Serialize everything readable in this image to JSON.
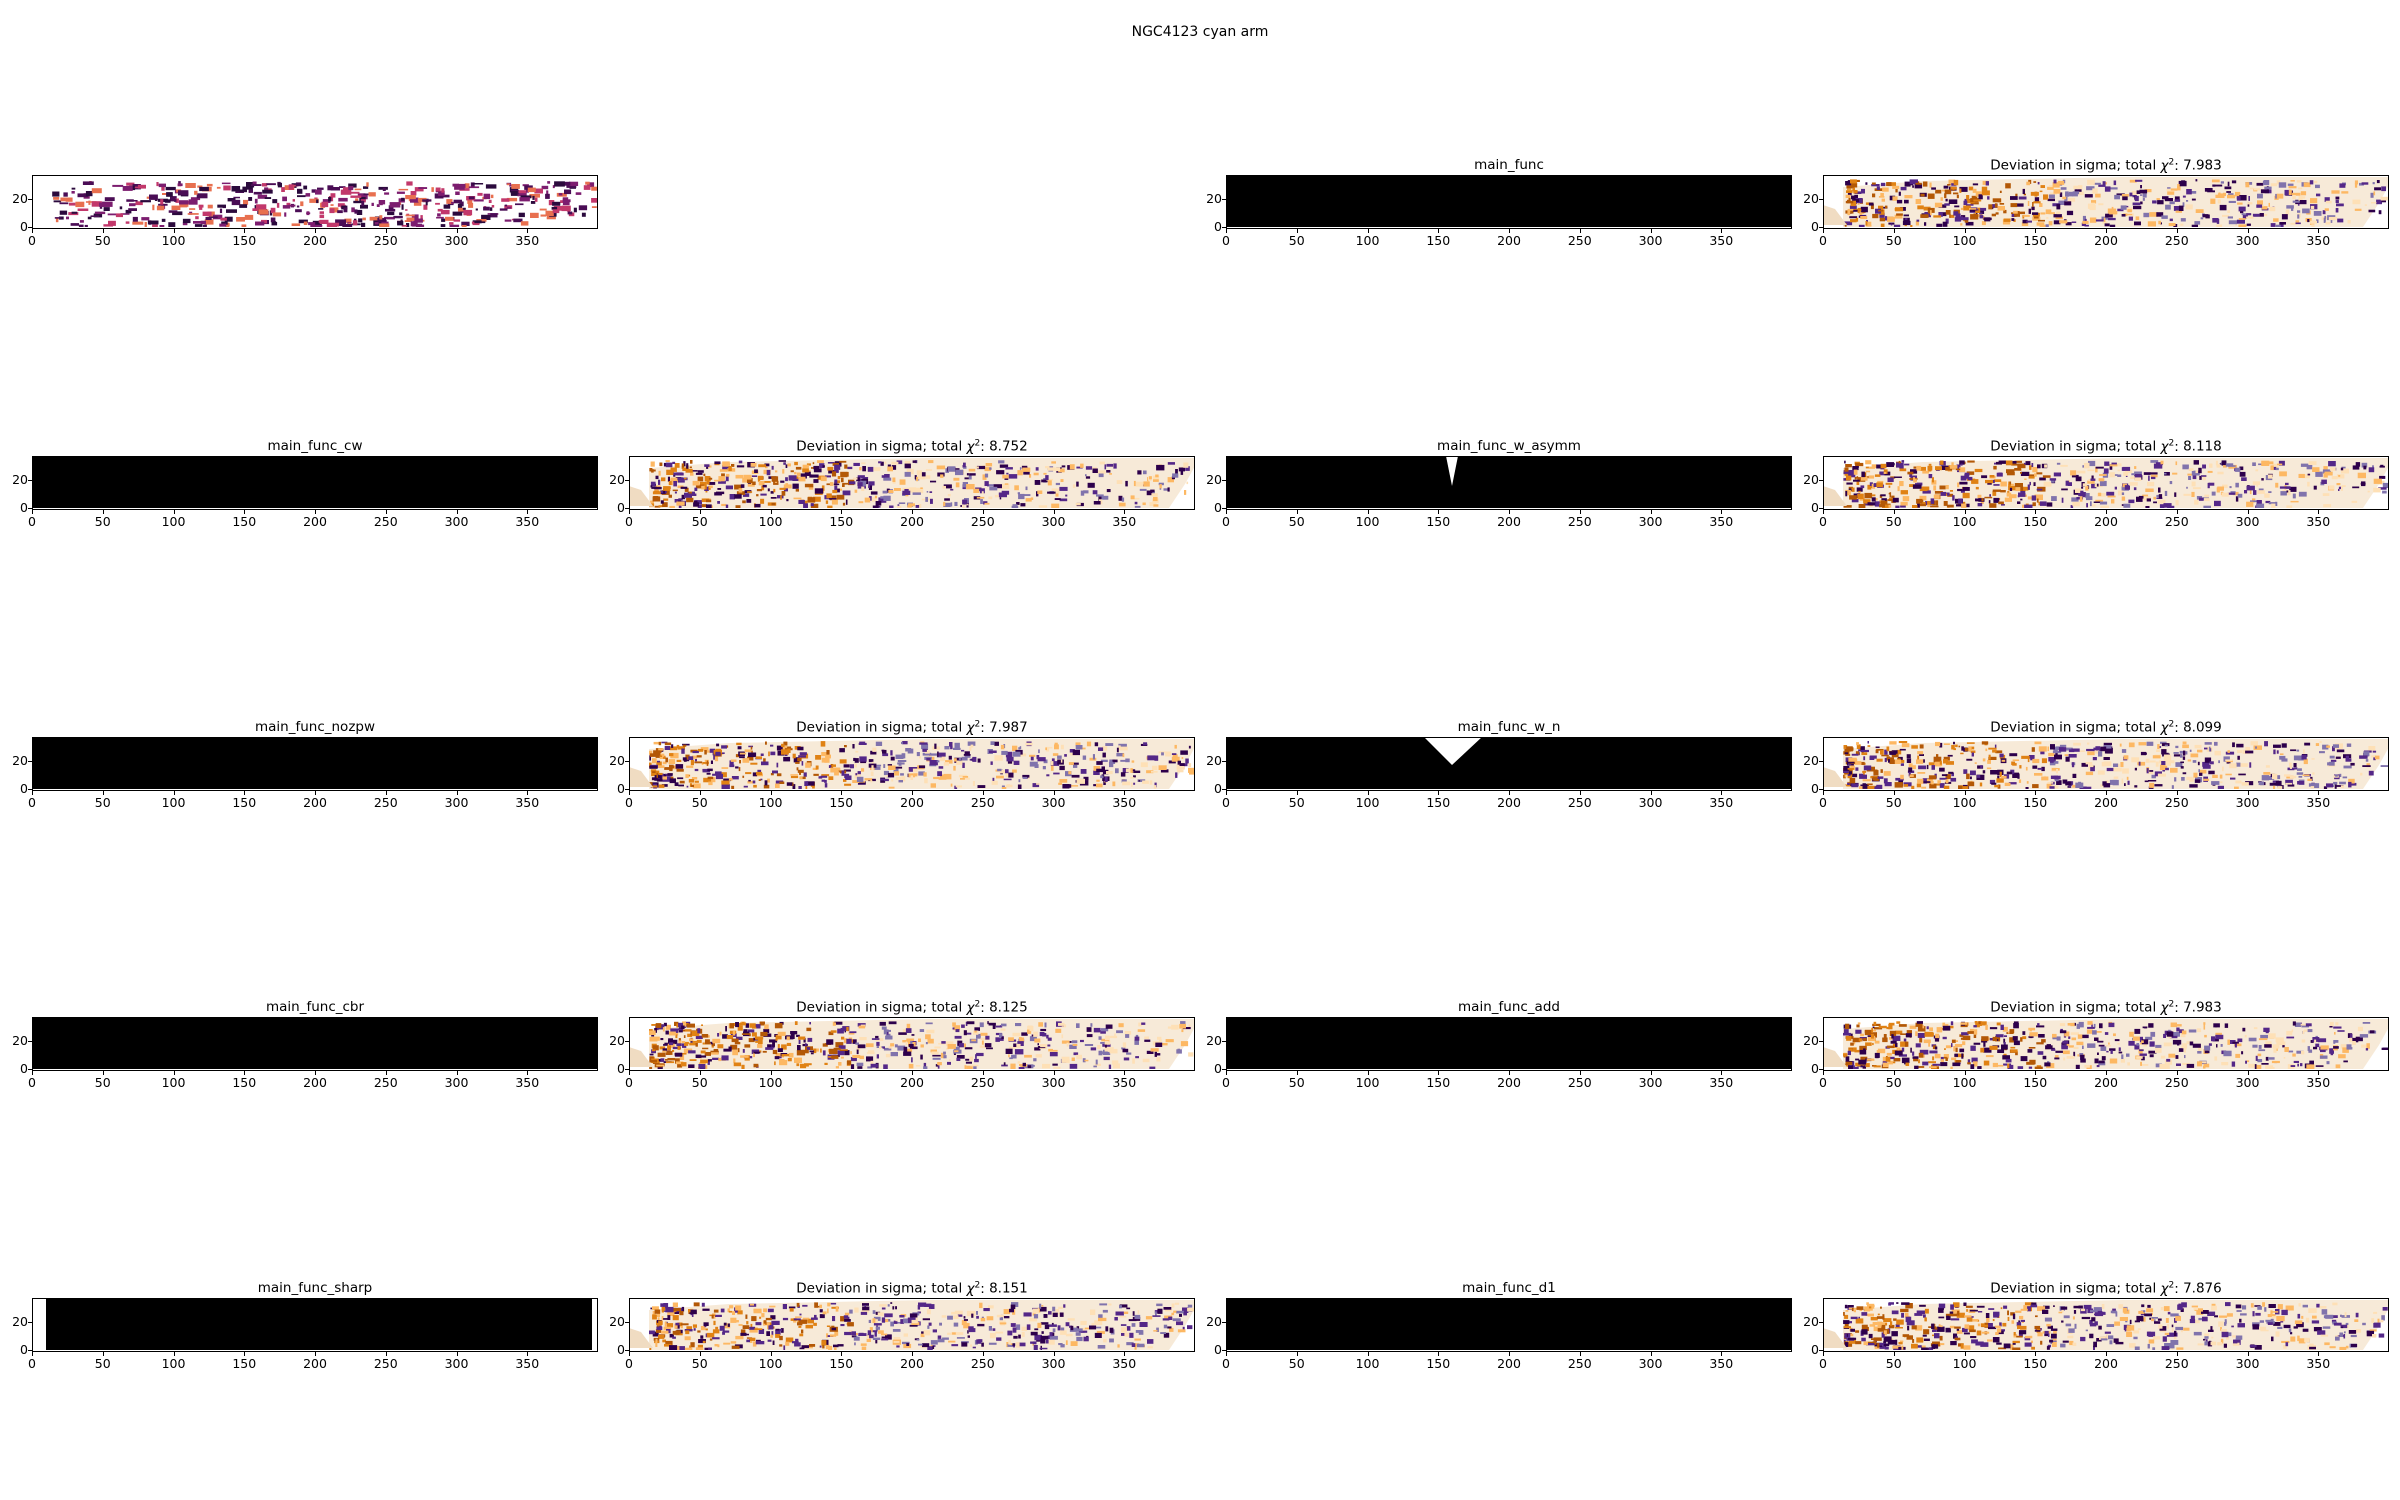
{
  "figure": {
    "suptitle": "NGC4123 cyan arm"
  },
  "chart_data": [
    {
      "type": "heatmap",
      "panel": "data",
      "title": "",
      "kind": "data",
      "xlim": [
        0,
        400
      ],
      "ylim": [
        0,
        37
      ],
      "xticks": [
        "0",
        "50",
        "100",
        "150",
        "200",
        "250",
        "300",
        "350"
      ],
      "yticks": [
        "0",
        "20"
      ]
    },
    {
      "type": "heatmap",
      "panel": "model",
      "title": "main_func",
      "kind": "model",
      "variant": "plain",
      "xlim": [
        0,
        400
      ],
      "ylim": [
        0,
        37
      ],
      "xticks": [
        "0",
        "50",
        "100",
        "150",
        "200",
        "250",
        "300",
        "350"
      ],
      "yticks": [
        "0",
        "20"
      ]
    },
    {
      "type": "heatmap",
      "panel": "residual",
      "title_prefix": "Deviation in sigma; total ",
      "chi2": "7.983",
      "kind": "residual",
      "xlim": [
        0,
        400
      ],
      "ylim": [
        0,
        37
      ],
      "xticks": [
        "0",
        "50",
        "100",
        "150",
        "200",
        "250",
        "300",
        "350"
      ],
      "yticks": [
        "0",
        "20"
      ]
    },
    {
      "type": "heatmap",
      "panel": "model",
      "title": "main_func_cw",
      "kind": "model",
      "variant": "cw",
      "xlim": [
        0,
        400
      ],
      "ylim": [
        0,
        37
      ],
      "xticks": [
        "0",
        "50",
        "100",
        "150",
        "200",
        "250",
        "300",
        "350"
      ],
      "yticks": [
        "0",
        "20"
      ]
    },
    {
      "type": "heatmap",
      "panel": "residual",
      "title_prefix": "Deviation in sigma; total ",
      "chi2": "8.752",
      "kind": "residual",
      "xlim": [
        0,
        400
      ],
      "ylim": [
        0,
        37
      ],
      "xticks": [
        "0",
        "50",
        "100",
        "150",
        "200",
        "250",
        "300",
        "350"
      ],
      "yticks": [
        "0",
        "20"
      ]
    },
    {
      "type": "heatmap",
      "panel": "model",
      "title": "main_func_w_asymm",
      "kind": "model",
      "variant": "asymm",
      "xlim": [
        0,
        400
      ],
      "ylim": [
        0,
        37
      ],
      "xticks": [
        "0",
        "50",
        "100",
        "150",
        "200",
        "250",
        "300",
        "350"
      ],
      "yticks": [
        "0",
        "20"
      ]
    },
    {
      "type": "heatmap",
      "panel": "residual",
      "title_prefix": "Deviation in sigma; total ",
      "chi2": "8.118",
      "kind": "residual",
      "xlim": [
        0,
        400
      ],
      "ylim": [
        0,
        37
      ],
      "xticks": [
        "0",
        "50",
        "100",
        "150",
        "200",
        "250",
        "300",
        "350"
      ],
      "yticks": [
        "0",
        "20"
      ]
    },
    {
      "type": "heatmap",
      "panel": "model",
      "title": "main_func_nozpw",
      "kind": "model",
      "variant": "plain",
      "xlim": [
        0,
        400
      ],
      "ylim": [
        0,
        37
      ],
      "xticks": [
        "0",
        "50",
        "100",
        "150",
        "200",
        "250",
        "300",
        "350"
      ],
      "yticks": [
        "0",
        "20"
      ]
    },
    {
      "type": "heatmap",
      "panel": "residual",
      "title_prefix": "Deviation in sigma; total ",
      "chi2": "7.987",
      "kind": "residual",
      "xlim": [
        0,
        400
      ],
      "ylim": [
        0,
        37
      ],
      "xticks": [
        "0",
        "50",
        "100",
        "150",
        "200",
        "250",
        "300",
        "350"
      ],
      "yticks": [
        "0",
        "20"
      ]
    },
    {
      "type": "heatmap",
      "panel": "model",
      "title": "main_func_w_n",
      "kind": "model",
      "variant": "wn",
      "xlim": [
        0,
        400
      ],
      "ylim": [
        0,
        37
      ],
      "xticks": [
        "0",
        "50",
        "100",
        "150",
        "200",
        "250",
        "300",
        "350"
      ],
      "yticks": [
        "0",
        "20"
      ]
    },
    {
      "type": "heatmap",
      "panel": "residual",
      "title_prefix": "Deviation in sigma; total ",
      "chi2": "8.099",
      "kind": "residual",
      "xlim": [
        0,
        400
      ],
      "ylim": [
        0,
        37
      ],
      "xticks": [
        "0",
        "50",
        "100",
        "150",
        "200",
        "250",
        "300",
        "350"
      ],
      "yticks": [
        "0",
        "20"
      ]
    },
    {
      "type": "heatmap",
      "panel": "model",
      "title": "main_func_cbr",
      "kind": "model",
      "variant": "plain",
      "xlim": [
        0,
        400
      ],
      "ylim": [
        0,
        37
      ],
      "xticks": [
        "0",
        "50",
        "100",
        "150",
        "200",
        "250",
        "300",
        "350"
      ],
      "yticks": [
        "0",
        "20"
      ]
    },
    {
      "type": "heatmap",
      "panel": "residual",
      "title_prefix": "Deviation in sigma; total ",
      "chi2": "8.125",
      "kind": "residual",
      "xlim": [
        0,
        400
      ],
      "ylim": [
        0,
        37
      ],
      "xticks": [
        "0",
        "50",
        "100",
        "150",
        "200",
        "250",
        "300",
        "350"
      ],
      "yticks": [
        "0",
        "20"
      ]
    },
    {
      "type": "heatmap",
      "panel": "model",
      "title": "main_func_add",
      "kind": "model",
      "variant": "add",
      "xlim": [
        0,
        400
      ],
      "ylim": [
        0,
        37
      ],
      "xticks": [
        "0",
        "50",
        "100",
        "150",
        "200",
        "250",
        "300",
        "350"
      ],
      "yticks": [
        "0",
        "20"
      ]
    },
    {
      "type": "heatmap",
      "panel": "residual",
      "title_prefix": "Deviation in sigma; total ",
      "chi2": "7.983",
      "kind": "residual",
      "xlim": [
        0,
        400
      ],
      "ylim": [
        0,
        37
      ],
      "xticks": [
        "0",
        "50",
        "100",
        "150",
        "200",
        "250",
        "300",
        "350"
      ],
      "yticks": [
        "0",
        "20"
      ]
    },
    {
      "type": "heatmap",
      "panel": "model",
      "title": "main_func_sharp",
      "kind": "model",
      "variant": "sharp",
      "xlim": [
        0,
        400
      ],
      "ylim": [
        0,
        37
      ],
      "xticks": [
        "0",
        "50",
        "100",
        "150",
        "200",
        "250",
        "300",
        "350"
      ],
      "yticks": [
        "0",
        "20"
      ]
    },
    {
      "type": "heatmap",
      "panel": "residual",
      "title_prefix": "Deviation in sigma; total ",
      "chi2": "8.151",
      "kind": "residual",
      "xlim": [
        0,
        400
      ],
      "ylim": [
        0,
        37
      ],
      "xticks": [
        "0",
        "50",
        "100",
        "150",
        "200",
        "250",
        "300",
        "350"
      ],
      "yticks": [
        "0",
        "20"
      ]
    },
    {
      "type": "heatmap",
      "panel": "model",
      "title": "main_func_d1",
      "kind": "model",
      "variant": "d1",
      "xlim": [
        0,
        400
      ],
      "ylim": [
        0,
        37
      ],
      "xticks": [
        "0",
        "50",
        "100",
        "150",
        "200",
        "250",
        "300",
        "350"
      ],
      "yticks": [
        "0",
        "20"
      ]
    },
    {
      "type": "heatmap",
      "panel": "residual",
      "title_prefix": "Deviation in sigma; total ",
      "chi2": "7.876",
      "kind": "residual",
      "xlim": [
        0,
        400
      ],
      "ylim": [
        0,
        37
      ],
      "xticks": [
        "0",
        "50",
        "100",
        "150",
        "200",
        "250",
        "300",
        "350"
      ],
      "yticks": [
        "0",
        "20"
      ]
    }
  ]
}
